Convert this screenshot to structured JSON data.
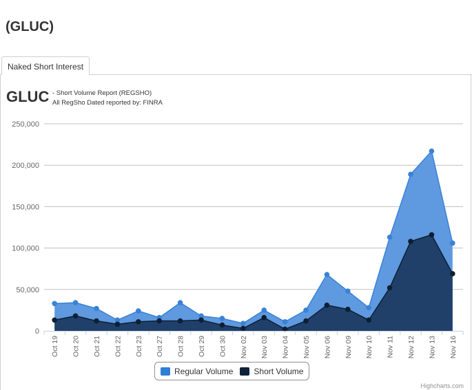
{
  "page": {
    "title": "(GLUC)"
  },
  "tabs": [
    {
      "label": "Naked Short Interest",
      "active": true
    }
  ],
  "chart_header": {
    "ticker": "GLUC",
    "subtitle_line1": "- Short Volume Report  (REGSHO)",
    "subtitle_line2": "All RegSho Dated reported by: FINRA"
  },
  "chart_data": {
    "type": "area",
    "categories": [
      "Oct 19",
      "Oct 20",
      "Oct 21",
      "Oct 22",
      "Oct 23",
      "Oct 27",
      "Oct 28",
      "Oct 29",
      "Oct 30",
      "Nov 02",
      "Nov 03",
      "Nov 04",
      "Nov 05",
      "Nov 06",
      "Nov 09",
      "Nov 10",
      "Nov 11",
      "Nov 12",
      "Nov 13",
      "Nov 16"
    ],
    "series": [
      {
        "name": "Regular Volume",
        "color": "#5f99df",
        "marker_color": "#3a82d6",
        "values": [
          33000,
          34000,
          27000,
          13000,
          24000,
          16000,
          34000,
          18000,
          15000,
          9000,
          25000,
          11000,
          25000,
          68000,
          48000,
          28000,
          113000,
          189000,
          217000,
          106000
        ]
      },
      {
        "name": "Short Volume",
        "color": "#20406a",
        "marker_color": "#0d1f33",
        "values": [
          13000,
          18000,
          12000,
          8000,
          11000,
          12000,
          12000,
          13000,
          7000,
          3000,
          16000,
          2000,
          12000,
          31000,
          26000,
          13000,
          52000,
          108000,
          116000,
          69000
        ]
      }
    ],
    "y_ticks": [
      "0",
      "50,000",
      "100,000",
      "150,000",
      "200,000",
      "250,000"
    ],
    "ylim": [
      0,
      250000
    ],
    "grid": true,
    "legend_position": "bottom-center"
  },
  "legend": {
    "items": [
      {
        "label": "Regular Volume",
        "color": "#2f7ed8"
      },
      {
        "label": "Short Volume",
        "color": "#0d233a"
      }
    ]
  },
  "credits": "Highcharts.com"
}
